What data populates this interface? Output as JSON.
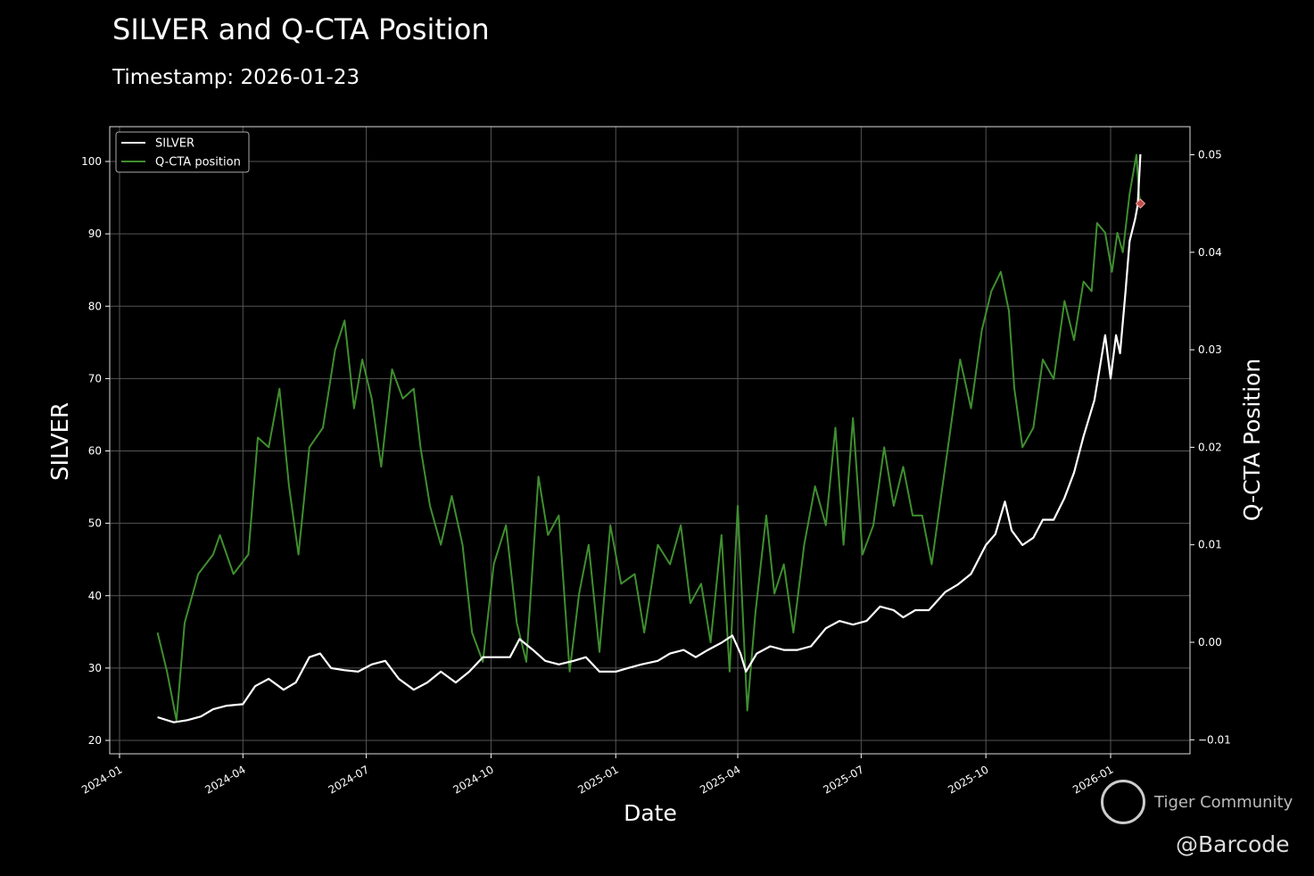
{
  "chart_data": {
    "type": "line",
    "title": "SILVER and Q-CTA Position",
    "subtitle": "Timestamp: 2026-01-23",
    "xlabel": "Date",
    "ylabel_left": "SILVER",
    "ylabel_right": "Q-CTA Position",
    "grid": true,
    "legend_position": "top-left",
    "x_ticks": [
      "2024-01",
      "2024-04",
      "2024-07",
      "2024-10",
      "2025-01",
      "2025-04",
      "2025-07",
      "2025-10",
      "2026-01"
    ],
    "y_left_ticks": [
      20,
      30,
      40,
      50,
      60,
      70,
      80,
      90,
      100
    ],
    "y_left_range": [
      19,
      105
    ],
    "y_right_ticks": [
      "-0.01",
      "0.00",
      "0.01",
      "0.02",
      "0.03",
      "0.04",
      "0.05"
    ],
    "y_right_range": [
      -0.0115,
      0.0528
    ],
    "series": [
      {
        "name": "SILVER",
        "axis": "left",
        "color": "#ffffff",
        "points": [
          [
            "2024-01-29",
            23.2
          ],
          [
            "2024-02-10",
            22.5
          ],
          [
            "2024-02-20",
            22.8
          ],
          [
            "2024-03-01",
            23.3
          ],
          [
            "2024-03-10",
            24.3
          ],
          [
            "2024-03-20",
            24.8
          ],
          [
            "2024-04-01",
            25
          ],
          [
            "2024-04-10",
            27.5
          ],
          [
            "2024-04-20",
            28.5
          ],
          [
            "2024-05-01",
            27
          ],
          [
            "2024-05-10",
            28
          ],
          [
            "2024-05-20",
            31.5
          ],
          [
            "2024-05-28",
            32
          ],
          [
            "2024-06-05",
            30
          ],
          [
            "2024-06-15",
            29.7
          ],
          [
            "2024-06-25",
            29.5
          ],
          [
            "2024-07-05",
            30.5
          ],
          [
            "2024-07-15",
            31
          ],
          [
            "2024-07-25",
            28.5
          ],
          [
            "2024-08-05",
            27
          ],
          [
            "2024-08-15",
            28
          ],
          [
            "2024-08-25",
            29.5
          ],
          [
            "2024-09-05",
            28
          ],
          [
            "2024-09-15",
            29.5
          ],
          [
            "2024-09-25",
            31.5
          ],
          [
            "2024-10-05",
            31.5
          ],
          [
            "2024-10-15",
            31.5
          ],
          [
            "2024-10-22",
            34
          ],
          [
            "2024-11-01",
            32.5
          ],
          [
            "2024-11-10",
            31
          ],
          [
            "2024-11-20",
            30.5
          ],
          [
            "2024-12-01",
            31
          ],
          [
            "2024-12-10",
            31.5
          ],
          [
            "2024-12-20",
            29.5
          ],
          [
            "2025-01-01",
            29.5
          ],
          [
            "2025-01-10",
            30
          ],
          [
            "2025-01-20",
            30.5
          ],
          [
            "2025-02-01",
            31
          ],
          [
            "2025-02-10",
            32
          ],
          [
            "2025-02-20",
            32.5
          ],
          [
            "2025-03-01",
            31.5
          ],
          [
            "2025-03-10",
            32.5
          ],
          [
            "2025-03-20",
            33.5
          ],
          [
            "2025-03-28",
            34.5
          ],
          [
            "2025-04-03",
            32
          ],
          [
            "2025-04-07",
            29.5
          ],
          [
            "2025-04-15",
            32
          ],
          [
            "2025-04-25",
            33
          ],
          [
            "2025-05-05",
            32.5
          ],
          [
            "2025-05-15",
            32.5
          ],
          [
            "2025-05-25",
            33
          ],
          [
            "2025-06-05",
            35.5
          ],
          [
            "2025-06-15",
            36.5
          ],
          [
            "2025-06-25",
            36
          ],
          [
            "2025-07-05",
            36.5
          ],
          [
            "2025-07-15",
            38.5
          ],
          [
            "2025-07-25",
            38
          ],
          [
            "2025-08-01",
            37
          ],
          [
            "2025-08-10",
            38
          ],
          [
            "2025-08-20",
            38
          ],
          [
            "2025-09-01",
            40.5
          ],
          [
            "2025-09-10",
            41.5
          ],
          [
            "2025-09-20",
            43
          ],
          [
            "2025-10-01",
            47
          ],
          [
            "2025-10-08",
            48.5
          ],
          [
            "2025-10-15",
            53
          ],
          [
            "2025-10-20",
            49
          ],
          [
            "2025-10-28",
            47
          ],
          [
            "2025-11-05",
            48
          ],
          [
            "2025-11-12",
            50.5
          ],
          [
            "2025-11-20",
            50.5
          ],
          [
            "2025-11-28",
            53.5
          ],
          [
            "2025-12-05",
            57
          ],
          [
            "2025-12-12",
            62
          ],
          [
            "2025-12-20",
            67
          ],
          [
            "2025-12-28",
            76
          ],
          [
            "2026-01-01",
            70
          ],
          [
            "2026-01-05",
            76
          ],
          [
            "2026-01-08",
            73.5
          ],
          [
            "2026-01-12",
            82
          ],
          [
            "2026-01-15",
            89
          ],
          [
            "2026-01-19",
            92
          ],
          [
            "2026-01-21",
            94
          ],
          [
            "2026-01-23",
            101
          ]
        ]
      },
      {
        "name": "Q-CTA position",
        "axis": "right",
        "color": "#3f8f2f",
        "points": [
          [
            "2024-01-29",
            0.001
          ],
          [
            "2024-02-05",
            -0.003
          ],
          [
            "2024-02-12",
            -0.008
          ],
          [
            "2024-02-18",
            0.002
          ],
          [
            "2024-02-28",
            0.007
          ],
          [
            "2024-03-10",
            0.009
          ],
          [
            "2024-03-15",
            0.011
          ],
          [
            "2024-03-25",
            0.007
          ],
          [
            "2024-04-05",
            0.009
          ],
          [
            "2024-04-12",
            0.021
          ],
          [
            "2024-04-20",
            0.02
          ],
          [
            "2024-04-28",
            0.026
          ],
          [
            "2024-05-05",
            0.016
          ],
          [
            "2024-05-12",
            0.009
          ],
          [
            "2024-05-20",
            0.02
          ],
          [
            "2024-05-30",
            0.022
          ],
          [
            "2024-06-08",
            0.03
          ],
          [
            "2024-06-15",
            0.033
          ],
          [
            "2024-06-22",
            0.024
          ],
          [
            "2024-06-28",
            0.029
          ],
          [
            "2024-07-05",
            0.025
          ],
          [
            "2024-07-12",
            0.018
          ],
          [
            "2024-07-20",
            0.028
          ],
          [
            "2024-07-28",
            0.025
          ],
          [
            "2024-08-05",
            0.026
          ],
          [
            "2024-08-10",
            0.02
          ],
          [
            "2024-08-17",
            0.014
          ],
          [
            "2024-08-25",
            0.01
          ],
          [
            "2024-09-02",
            0.015
          ],
          [
            "2024-09-10",
            0.01
          ],
          [
            "2024-09-17",
            0.001
          ],
          [
            "2024-09-25",
            -0.002
          ],
          [
            "2024-10-03",
            0.008
          ],
          [
            "2024-10-12",
            0.012
          ],
          [
            "2024-10-20",
            0.002
          ],
          [
            "2024-10-27",
            -0.002
          ],
          [
            "2024-11-05",
            0.017
          ],
          [
            "2024-11-12",
            0.011
          ],
          [
            "2024-11-20",
            0.013
          ],
          [
            "2024-11-28",
            -0.003
          ],
          [
            "2024-12-05",
            0.005
          ],
          [
            "2024-12-12",
            0.01
          ],
          [
            "2024-12-20",
            -0.001
          ],
          [
            "2024-12-28",
            0.012
          ],
          [
            "2025-01-05",
            0.006
          ],
          [
            "2025-01-15",
            0.007
          ],
          [
            "2025-01-22",
            0.001
          ],
          [
            "2025-02-01",
            0.01
          ],
          [
            "2025-02-10",
            0.008
          ],
          [
            "2025-02-18",
            0.012
          ],
          [
            "2025-02-25",
            0.004
          ],
          [
            "2025-03-05",
            0.006
          ],
          [
            "2025-03-12",
            0.0
          ],
          [
            "2025-03-20",
            0.011
          ],
          [
            "2025-03-26",
            -0.003
          ],
          [
            "2025-04-01",
            0.014
          ],
          [
            "2025-04-08",
            -0.007
          ],
          [
            "2025-04-14",
            0.003
          ],
          [
            "2025-04-22",
            0.013
          ],
          [
            "2025-04-28",
            0.005
          ],
          [
            "2025-05-05",
            0.008
          ],
          [
            "2025-05-12",
            0.001
          ],
          [
            "2025-05-20",
            0.01
          ],
          [
            "2025-05-28",
            0.016
          ],
          [
            "2025-06-05",
            0.012
          ],
          [
            "2025-06-12",
            0.022
          ],
          [
            "2025-06-18",
            0.01
          ],
          [
            "2025-06-25",
            0.023
          ],
          [
            "2025-07-02",
            0.009
          ],
          [
            "2025-07-10",
            0.012
          ],
          [
            "2025-07-18",
            0.02
          ],
          [
            "2025-07-25",
            0.014
          ],
          [
            "2025-08-01",
            0.018
          ],
          [
            "2025-08-08",
            0.013
          ],
          [
            "2025-08-15",
            0.013
          ],
          [
            "2025-08-22",
            0.008
          ],
          [
            "2025-08-29",
            0.015
          ],
          [
            "2025-09-05",
            0.022
          ],
          [
            "2025-09-12",
            0.029
          ],
          [
            "2025-09-20",
            0.024
          ],
          [
            "2025-09-28",
            0.032
          ],
          [
            "2025-10-05",
            0.036
          ],
          [
            "2025-10-12",
            0.038
          ],
          [
            "2025-10-18",
            0.034
          ],
          [
            "2025-10-22",
            0.026
          ],
          [
            "2025-10-28",
            0.02
          ],
          [
            "2025-11-05",
            0.022
          ],
          [
            "2025-11-12",
            0.029
          ],
          [
            "2025-11-20",
            0.027
          ],
          [
            "2025-11-28",
            0.035
          ],
          [
            "2025-12-05",
            0.031
          ],
          [
            "2025-12-12",
            0.037
          ],
          [
            "2025-12-18",
            0.036
          ],
          [
            "2025-12-22",
            0.043
          ],
          [
            "2025-12-28",
            0.042
          ],
          [
            "2026-01-02",
            0.038
          ],
          [
            "2026-01-06",
            0.042
          ],
          [
            "2026-01-10",
            0.04
          ],
          [
            "2026-01-15",
            0.046
          ],
          [
            "2026-01-20",
            0.05
          ],
          [
            "2026-01-22",
            0.046
          ],
          [
            "2026-01-23",
            0.045
          ]
        ]
      }
    ],
    "marker": {
      "date": "2026-01-23",
      "value": 0.045,
      "axis": "right",
      "color": "#c0504d",
      "shape": "diamond"
    }
  },
  "watermark": {
    "brand": "Tiger Community",
    "handle": "@Barcode"
  }
}
